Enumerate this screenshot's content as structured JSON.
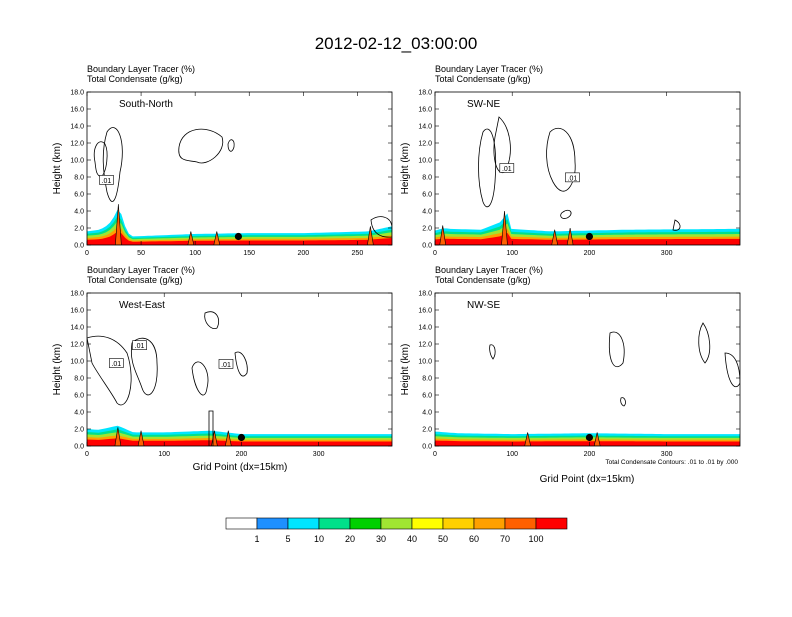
{
  "title": "2012-02-12_03:00:00",
  "field_label_1": "Boundary Layer Tracer   (%)",
  "field_label_2": "Total Condensate   (g/kg)",
  "ylabel": "Height (km)",
  "xlabel": "Grid Point (dx=15km)",
  "contour_note": "Total Condensate Contours: .01 to .01 by .000",
  "colorbar": {
    "colors": [
      "#ffffff",
      "#1e90ff",
      "#00e5ff",
      "#00e08a",
      "#00d000",
      "#a0e632",
      "#ffff00",
      "#ffd000",
      "#ffa000",
      "#ff6000",
      "#ff0000"
    ],
    "labels": [
      "1",
      "5",
      "10",
      "20",
      "30",
      "40",
      "50",
      "60",
      "70",
      "100"
    ]
  },
  "colors": {
    "surface_layers": [
      "#00e5ff",
      "#00e08a",
      "#a0e632",
      "#ffa000",
      "#ff0000"
    ],
    "contour": "#000000",
    "marker": "#000000"
  },
  "chart_data": [
    {
      "type": "heatmap",
      "name": "South-North",
      "xlim": [
        0,
        282
      ],
      "ylim": [
        0,
        18
      ],
      "xticks": [
        0,
        50,
        100,
        150,
        200,
        250
      ],
      "yticks": [
        "0.0",
        "2.0",
        "4.0",
        "6.0",
        "8.0",
        "10.0",
        "12.0",
        "14.0",
        "16.0",
        "18.0"
      ],
      "tracer_top_km": [
        [
          0,
          1.6
        ],
        [
          12,
          1.8
        ],
        [
          20,
          2.4
        ],
        [
          27,
          3.7
        ],
        [
          30,
          4.8
        ],
        [
          33,
          2.8
        ],
        [
          40,
          1.0
        ],
        [
          100,
          1.3
        ],
        [
          150,
          1.4
        ],
        [
          200,
          1.4
        ],
        [
          260,
          1.6
        ],
        [
          282,
          2.2
        ]
      ],
      "spikes": [
        [
          29,
          4.8
        ],
        [
          96,
          1.6
        ],
        [
          120,
          1.6
        ],
        [
          262,
          2.2
        ]
      ],
      "contour_labels": [
        {
          "text": ".01",
          "x": 18,
          "y": 7.6
        }
      ],
      "marker": {
        "x": 140,
        "y": 1.0
      }
    },
    {
      "type": "heatmap",
      "name": "SW-NE",
      "xlim": [
        0,
        395
      ],
      "ylim": [
        0,
        18
      ],
      "xticks": [
        0,
        100,
        200,
        300
      ],
      "yticks": [
        "0.0",
        "2.0",
        "4.0",
        "6.0",
        "8.0",
        "10.0",
        "12.0",
        "14.0",
        "16.0",
        "18.0"
      ],
      "tracer_top_km": [
        [
          0,
          1.7
        ],
        [
          12,
          2.0
        ],
        [
          18,
          1.9
        ],
        [
          60,
          1.8
        ],
        [
          88,
          2.8
        ],
        [
          92,
          4.5
        ],
        [
          98,
          1.9
        ],
        [
          150,
          1.6
        ],
        [
          250,
          1.8
        ],
        [
          395,
          1.9
        ]
      ],
      "spikes": [
        [
          10,
          2.3
        ],
        [
          90,
          4.0
        ],
        [
          155,
          1.8
        ],
        [
          175,
          2.0
        ]
      ],
      "contour_labels": [
        {
          "text": ".01",
          "x": 93,
          "y": 9.0
        },
        {
          "text": ".01",
          "x": 178,
          "y": 7.9
        }
      ],
      "marker": {
        "x": 200,
        "y": 1.0
      }
    },
    {
      "type": "heatmap",
      "name": "West-East",
      "xlim": [
        0,
        395
      ],
      "ylim": [
        0,
        18
      ],
      "xticks": [
        0,
        100,
        200,
        300
      ],
      "yticks": [
        "0.0",
        "2.0",
        "4.0",
        "6.0",
        "8.0",
        "10.0",
        "12.0",
        "14.0",
        "16.0",
        "18.0"
      ],
      "tracer_top_km": [
        [
          0,
          2.0
        ],
        [
          15,
          1.9
        ],
        [
          40,
          2.4
        ],
        [
          60,
          1.6
        ],
        [
          100,
          1.6
        ],
        [
          160,
          1.8
        ],
        [
          200,
          1.4
        ],
        [
          395,
          1.4
        ]
      ],
      "spikes": [
        [
          40,
          2.2
        ],
        [
          70,
          1.8
        ],
        [
          165,
          1.8
        ],
        [
          183,
          1.8
        ]
      ],
      "contour_labels": [
        {
          "text": ".01",
          "x": 38,
          "y": 9.7
        },
        {
          "text": ".01",
          "x": 68,
          "y": 11.8
        },
        {
          "text": ".01",
          "x": 180,
          "y": 9.6
        }
      ],
      "marker": {
        "x": 200,
        "y": 1.0
      }
    },
    {
      "type": "heatmap",
      "name": "NW-SE",
      "xlim": [
        0,
        395
      ],
      "ylim": [
        0,
        18
      ],
      "xticks": [
        0,
        100,
        200,
        300
      ],
      "yticks": [
        "0.0",
        "2.0",
        "4.0",
        "6.0",
        "8.0",
        "10.0",
        "12.0",
        "14.0",
        "16.0",
        "18.0"
      ],
      "tracer_top_km": [
        [
          0,
          1.7
        ],
        [
          30,
          1.5
        ],
        [
          100,
          1.4
        ],
        [
          200,
          1.5
        ],
        [
          300,
          1.4
        ],
        [
          395,
          1.4
        ]
      ],
      "spikes": [
        [
          120,
          1.6
        ],
        [
          210,
          1.6
        ]
      ],
      "contour_labels": [],
      "marker": {
        "x": 200,
        "y": 1.0
      }
    }
  ]
}
